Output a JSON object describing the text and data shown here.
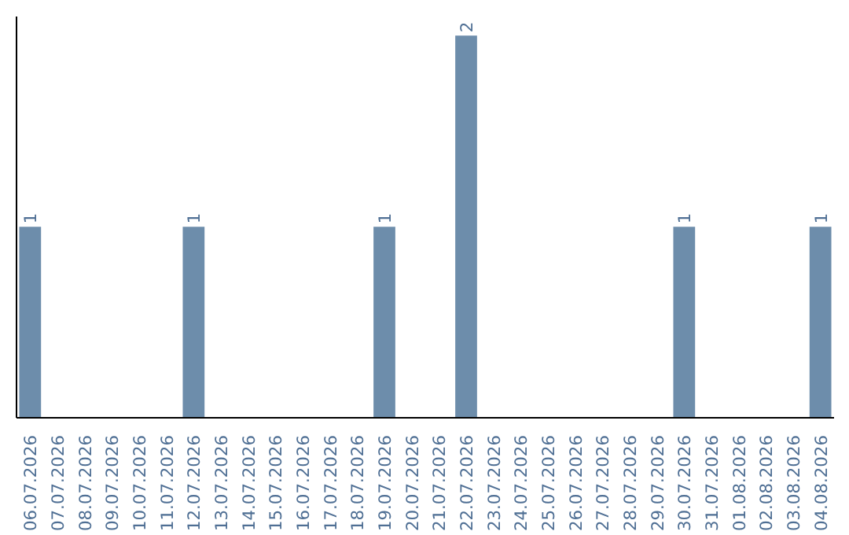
{
  "chart_data": {
    "type": "bar",
    "categories": [
      "06.07.2026",
      "07.07.2026",
      "08.07.2026",
      "09.07.2026",
      "10.07.2026",
      "11.07.2026",
      "12.07.2026",
      "13.07.2026",
      "14.07.2026",
      "15.07.2026",
      "16.07.2026",
      "17.07.2026",
      "18.07.2026",
      "19.07.2026",
      "20.07.2026",
      "21.07.2026",
      "22.07.2026",
      "23.07.2026",
      "24.07.2026",
      "25.07.2026",
      "26.07.2026",
      "27.07.2026",
      "28.07.2026",
      "29.07.2026",
      "30.07.2026",
      "31.07.2026",
      "01.08.2026",
      "02.08.2026",
      "03.08.2026",
      "04.08.2026"
    ],
    "values": [
      1,
      0,
      0,
      0,
      0,
      0,
      1,
      0,
      0,
      0,
      0,
      0,
      0,
      1,
      0,
      0,
      2,
      0,
      0,
      0,
      0,
      0,
      0,
      0,
      1,
      0,
      0,
      0,
      0,
      1
    ],
    "value_labels": [
      "1",
      null,
      null,
      null,
      null,
      null,
      "1",
      null,
      null,
      null,
      null,
      null,
      null,
      "1",
      null,
      null,
      "2",
      null,
      null,
      null,
      null,
      null,
      null,
      null,
      "1",
      null,
      null,
      null,
      null,
      "1"
    ],
    "color": "#6d8dab",
    "tick_labels": "x",
    "grid": false
  }
}
